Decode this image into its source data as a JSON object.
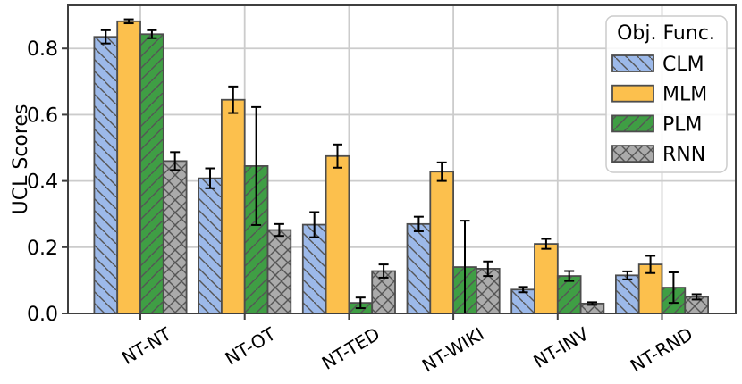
{
  "chart_data": {
    "type": "bar",
    "title": "",
    "xlabel": "",
    "ylabel": "UCL Scores",
    "categories": [
      "NT-NT",
      "NT-OT",
      "NT-TED",
      "NT-WIKI",
      "NT-INV",
      "NT-RND"
    ],
    "series": [
      {
        "name": "CLM",
        "color": "#9cb9e9",
        "hatch": "\\",
        "values": [
          0.835,
          0.408,
          0.268,
          0.27,
          0.072,
          0.115
        ],
        "errors": [
          0.02,
          0.03,
          0.038,
          0.022,
          0.008,
          0.012
        ]
      },
      {
        "name": "MLM",
        "color": "#fcc04d",
        "hatch": "",
        "values": [
          0.882,
          0.645,
          0.475,
          0.428,
          0.21,
          0.148
        ],
        "errors": [
          0.006,
          0.04,
          0.035,
          0.028,
          0.015,
          0.026
        ]
      },
      {
        "name": "PLM",
        "color": "#3f9e44",
        "hatch": "/",
        "values": [
          0.843,
          0.445,
          0.032,
          0.14,
          0.113,
          0.078
        ],
        "errors": [
          0.012,
          0.178,
          0.016,
          0.14,
          0.015,
          0.046
        ]
      },
      {
        "name": "RNN",
        "color": "#ababab",
        "hatch": "x",
        "values": [
          0.46,
          0.252,
          0.128,
          0.135,
          0.03,
          0.05
        ],
        "errors": [
          0.027,
          0.018,
          0.02,
          0.022,
          0.004,
          0.008
        ]
      }
    ],
    "yticks": [
      0.0,
      0.2,
      0.4,
      0.6,
      0.8
    ],
    "ytick_labels": [
      "0.0",
      "0.2",
      "0.4",
      "0.6",
      "0.8"
    ],
    "ylim": [
      0.0,
      0.93
    ],
    "grid": true,
    "legend": {
      "title": "Obj. Func.",
      "position": "upper right"
    },
    "colors": {
      "bar_edge": "#4d4d4d",
      "hatch": "#555555",
      "grid": "#cccccc",
      "spine": "#3f3f3f",
      "error_bar": "#000000",
      "legend_border": "#cccccc",
      "background": "#ffffff"
    }
  }
}
